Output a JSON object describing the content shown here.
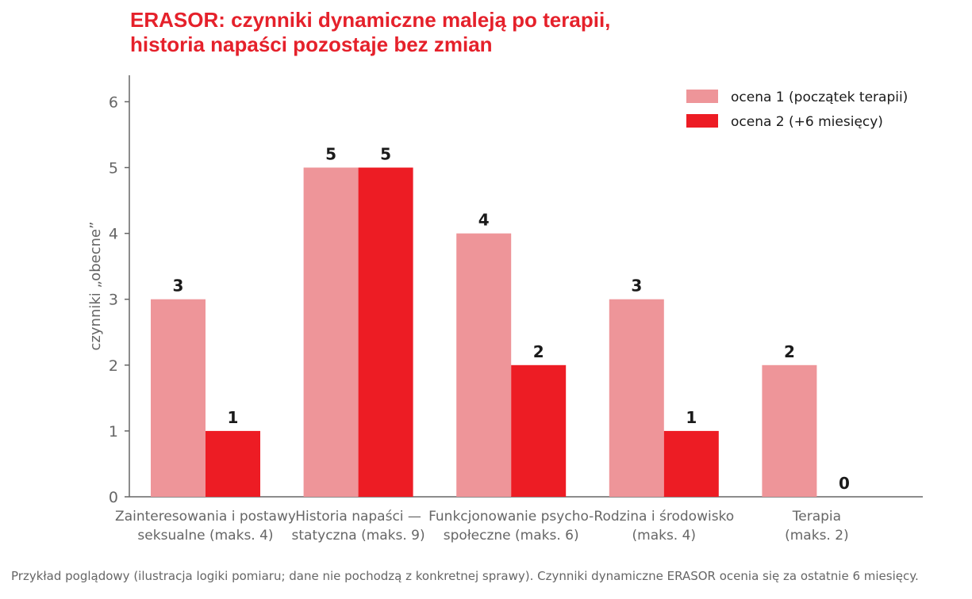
{
  "title_lines": [
    "ERASOR: czynniki dynamiczne maleją po terapii,",
    "historia napaści pozostaje bez zmian"
  ],
  "footnote": "Przykład poglądowy (ilustracja logiki pomiaru; dane nie pochodzą z konkretnej sprawy). Czynniki dynamiczne ERASOR ocenia się za ostatnie 6 miesięcy.",
  "colors": {
    "title": "#e5212b",
    "series1": "#ee9599",
    "series2": "#ed1c24",
    "axis": "#666666",
    "label": "#1a1a1a"
  },
  "chart_data": {
    "type": "bar",
    "title": "ERASOR: czynniki dynamiczne maleją po terapii, historia napaści pozostaje bez zmian",
    "ylabel": "czynniki „obecne”",
    "xlabel": "",
    "ylim": [
      0,
      6.4
    ],
    "yticks": [
      0,
      1,
      2,
      3,
      4,
      5,
      6
    ],
    "grid": false,
    "legend_position": "top-right",
    "categories": [
      [
        "Zainteresowania i postawy",
        "seksualne (maks. 4)"
      ],
      [
        "Historia napaści —",
        "statyczna (maks. 9)"
      ],
      [
        "Funkcjonowanie psycho-",
        "społeczne (maks. 6)"
      ],
      [
        "Rodzina i środowisko",
        "(maks. 4)"
      ],
      [
        "Terapia",
        "(maks. 2)"
      ]
    ],
    "series": [
      {
        "name": "ocena 1 (początek terapii)",
        "values": [
          3,
          5,
          4,
          3,
          2
        ]
      },
      {
        "name": "ocena 2 (+6 miesięcy)",
        "values": [
          1,
          5,
          2,
          1,
          0
        ]
      }
    ],
    "data_labels": true
  }
}
